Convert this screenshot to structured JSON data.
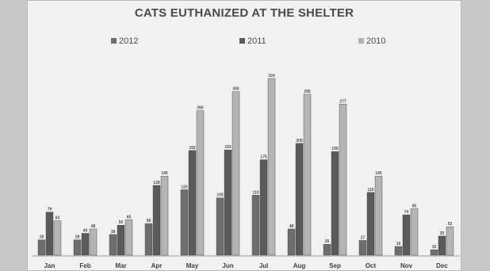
{
  "chart_data": {
    "type": "bar",
    "title": "CATS EUTHANIZED AT THE SHELTER",
    "categories": [
      "Jan",
      "Feb",
      "Mar",
      "Apr",
      "May",
      "Jun",
      "Jul",
      "Aug",
      "Sep",
      "Oct",
      "Nov",
      "Dec"
    ],
    "series": [
      {
        "name": "2012",
        "color": "#6e6e6e",
        "values": [
          28,
          28,
          38,
          58,
          120,
          105,
          110,
          48,
          20,
          27,
          16,
          10
        ]
      },
      {
        "name": "2011",
        "color": "#5a5a5a",
        "values": [
          79,
          40,
          55,
          128,
          192,
          193,
          175,
          205,
          190,
          115,
          74,
          35
        ]
      },
      {
        "name": "2010",
        "color": "#b4b4b4",
        "values": [
          63,
          48,
          65,
          145,
          265,
          300,
          324,
          295,
          277,
          145,
          85,
          52
        ]
      }
    ],
    "xlabel": "",
    "ylabel": "",
    "ylim": [
      0,
      340
    ],
    "legend": "top-center",
    "grid": false
  }
}
